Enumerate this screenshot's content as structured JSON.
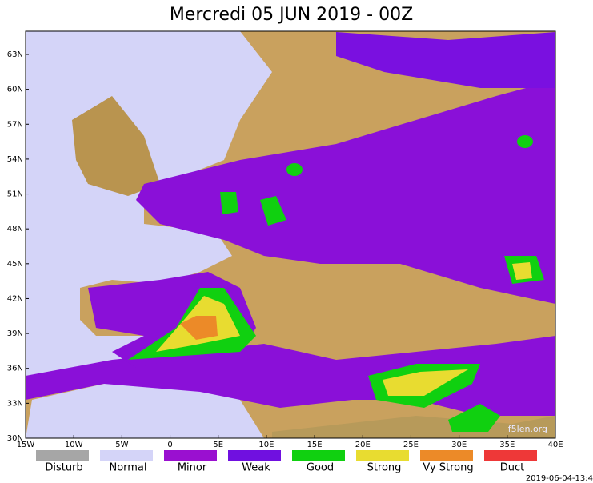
{
  "header": {
    "title": "Mercredi 05 JUN 2019 - 00Z"
  },
  "axes": {
    "lat_labels": [
      "63N",
      "60N",
      "57N",
      "54N",
      "51N",
      "48N",
      "45N",
      "42N",
      "39N",
      "36N",
      "33N",
      "30N"
    ],
    "lon_labels": [
      "15W",
      "10W",
      "5W",
      "0",
      "5E",
      "10E",
      "15E",
      "20E",
      "25E",
      "30E",
      "35E",
      "40E"
    ]
  },
  "legend": [
    {
      "label": "Disturb",
      "color": "#a6a6a6"
    },
    {
      "label": "Normal",
      "color": "#d4d4f8"
    },
    {
      "label": "Minor",
      "color": "#9a10d0"
    },
    {
      "label": "Weak",
      "color": "#7010e0"
    },
    {
      "label": "Good",
      "color": "#10d010"
    },
    {
      "label": "Strong",
      "color": "#e8dc30"
    },
    {
      "label": "Vy Strong",
      "color": "#ec8a28"
    },
    {
      "label": "Duct",
      "color": "#ee3838"
    }
  ],
  "watermark": "f5len.org",
  "timestamp": "2019-06-04-13:4"
}
